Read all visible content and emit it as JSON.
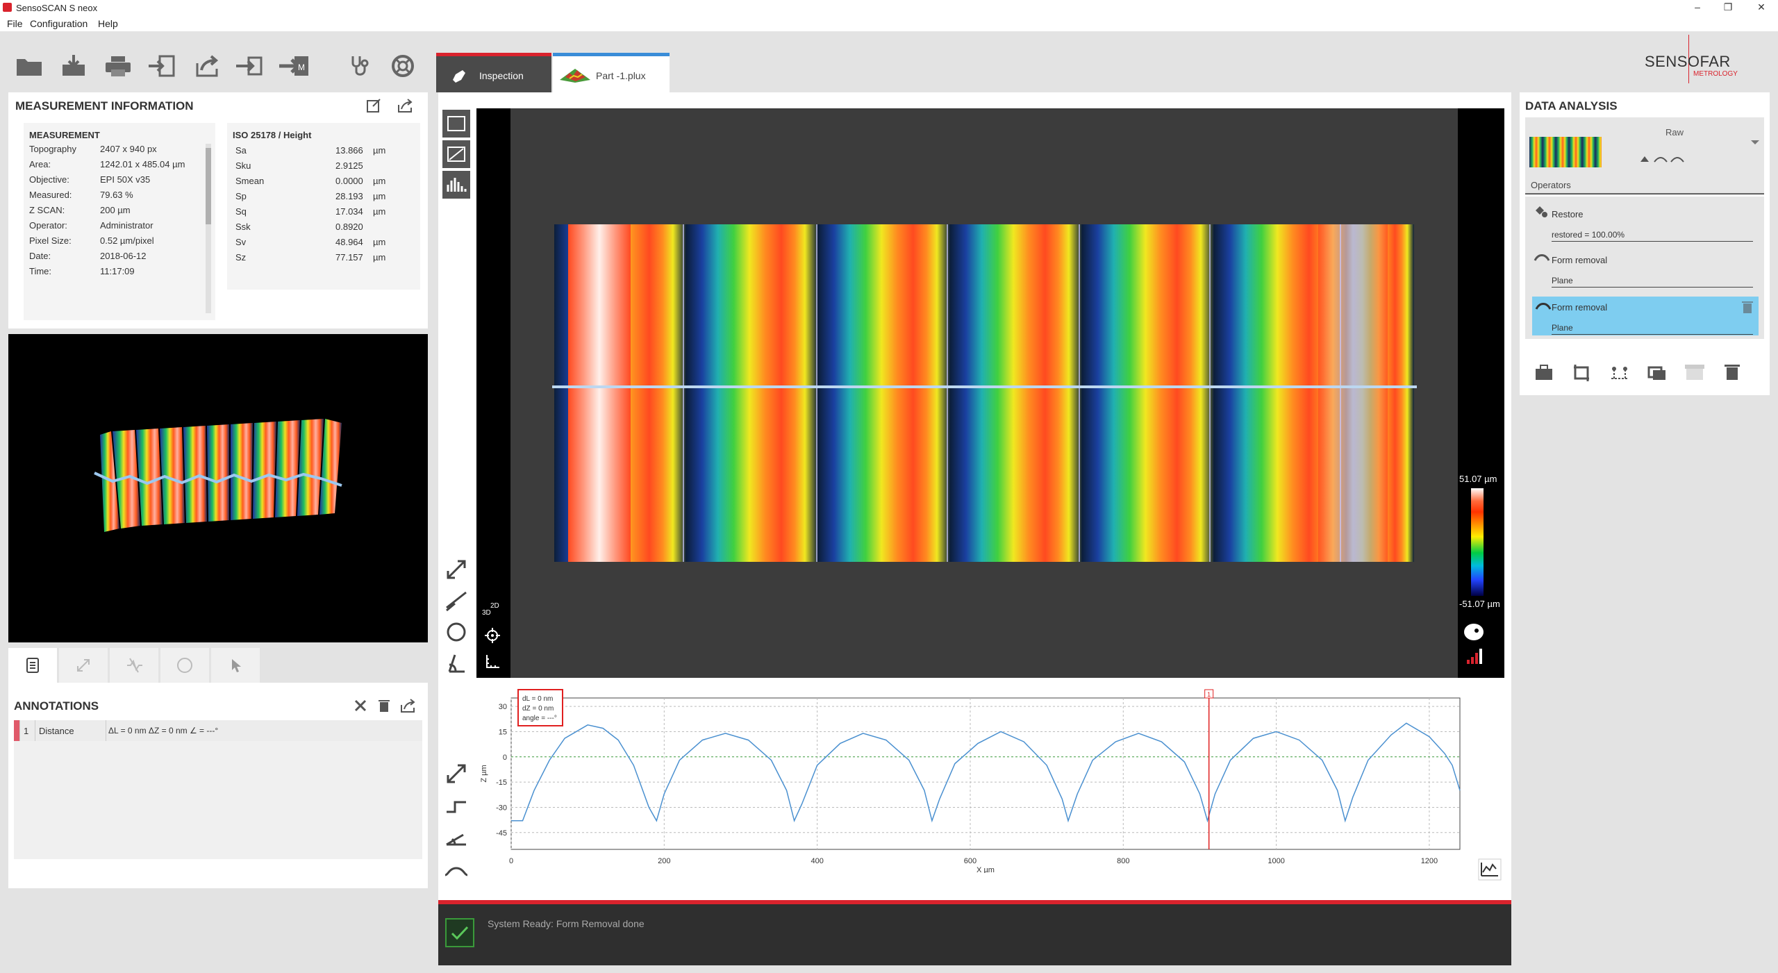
{
  "window": {
    "title": "SensoSCAN S neox"
  },
  "menu": [
    "File",
    "Configuration",
    "Help"
  ],
  "toolbar": {
    "icons": [
      "folder-icon",
      "save-icon",
      "print-icon",
      "report-icon",
      "export-icon",
      "import-icon",
      "import-m-icon",
      "stethoscope-icon",
      "lifebuoy-icon"
    ]
  },
  "tabs": [
    {
      "label": "Inspection",
      "icon": "pen-icon"
    },
    {
      "label": "Part -1.plux",
      "icon": "topography-thumbnail-icon"
    }
  ],
  "logo": {
    "name": "SENSOFAR",
    "sub": "METROLOGY"
  },
  "measurement_info": {
    "title": "MEASUREMENT INFORMATION",
    "measurement": {
      "header": "MEASUREMENT",
      "rows": [
        {
          "k": "Topography",
          "v": "2407 x 940 px"
        },
        {
          "k": "Area:",
          "v": "1242.01 x 485.04 µm"
        },
        {
          "k": "Objective:",
          "v": "EPI 50X v35"
        },
        {
          "k": "Measured:",
          "v": "79.63 %"
        },
        {
          "k": "Z SCAN:",
          "v": "200 µm"
        },
        {
          "k": "Operator:",
          "v": "Administrator"
        },
        {
          "k": "Pixel Size:",
          "v": "0.52 µm/pixel"
        },
        {
          "k": "Date:",
          "v": "2018-06-12"
        },
        {
          "k": "Time:",
          "v": "11:17:09"
        }
      ]
    },
    "iso": {
      "header": "ISO 25178 / Height",
      "rows": [
        {
          "k": "Sa",
          "v": "13.866",
          "u": "µm"
        },
        {
          "k": "Sku",
          "v": "2.9125",
          "u": ""
        },
        {
          "k": "Smean",
          "v": "0.0000",
          "u": "µm"
        },
        {
          "k": "Sp",
          "v": "28.193",
          "u": "µm"
        },
        {
          "k": "Sq",
          "v": "17.034",
          "u": "µm"
        },
        {
          "k": "Ssk",
          "v": "0.8920",
          "u": ""
        },
        {
          "k": "Sv",
          "v": "48.964",
          "u": "µm"
        },
        {
          "k": "Sz",
          "v": "77.157",
          "u": "µm"
        }
      ]
    }
  },
  "annotations": {
    "title": "ANNOTATIONS",
    "rows": [
      {
        "index": "1",
        "type": "Distance",
        "value": "ΔL = 0 nm ΔZ = 0 nm ∠ = ---°"
      }
    ]
  },
  "viewer": {
    "scale_max": "51.07 µm",
    "scale_min": "-51.07 µm",
    "mode_label_2d": "2D",
    "mode_label_3d": "3D"
  },
  "profile": {
    "measure_box": {
      "dl": "dL = 0 nm",
      "dz": "dZ = 0 nm",
      "angle": "angle = ---°"
    },
    "cursor_label": "1",
    "xlabel": "X µm",
    "ylabel": "Z µm",
    "x_ticks": [
      "0",
      "200",
      "400",
      "600",
      "800",
      "1000",
      "1200"
    ],
    "y_ticks": [
      "30",
      "15",
      "0",
      "-15",
      "-30",
      "-45"
    ]
  },
  "chart_data": {
    "type": "line",
    "xlabel": "X µm",
    "ylabel": "Z µm",
    "xlim": [
      0,
      1240
    ],
    "ylim": [
      -55,
      35
    ],
    "x_ticks": [
      0,
      200,
      400,
      600,
      800,
      1000,
      1200
    ],
    "y_ticks": [
      30,
      15,
      0,
      -15,
      -30,
      -45
    ],
    "cursor_x": 912,
    "series": [
      {
        "x": [
          0,
          15,
          30,
          50,
          70,
          100,
          120,
          140,
          160,
          180,
          190,
          200,
          220,
          250,
          280,
          310,
          340,
          360,
          370,
          380,
          400,
          430,
          460,
          490,
          520,
          540,
          550,
          560,
          580,
          610,
          640,
          670,
          700,
          720,
          728,
          740,
          760,
          790,
          820,
          850,
          880,
          900,
          910,
          920,
          940,
          970,
          1000,
          1030,
          1060,
          1080,
          1090,
          1100,
          1120,
          1150,
          1170,
          1200,
          1220,
          1230,
          1240
        ],
        "y": [
          -38,
          -38,
          -20,
          -2,
          11,
          19,
          17,
          10,
          -5,
          -30,
          -38,
          -22,
          -2,
          10,
          14,
          10,
          -2,
          -20,
          -38,
          -28,
          -5,
          8,
          14,
          10,
          -2,
          -20,
          -38,
          -25,
          -4,
          8,
          15,
          9,
          -5,
          -25,
          -38,
          -22,
          -2,
          9,
          14,
          9,
          -3,
          -22,
          -38,
          -22,
          -2,
          11,
          15,
          10,
          -2,
          -20,
          -38,
          -24,
          -2,
          13,
          20,
          12,
          2,
          -5,
          -20
        ]
      }
    ]
  },
  "data_analysis": {
    "title": "DATA ANALYSIS",
    "raw_label": "Raw",
    "operators_label": "Operators",
    "operators": [
      {
        "name": "Restore",
        "sub": "restored = 100.00%",
        "selected": false
      },
      {
        "name": "Form removal",
        "sub": "Plane",
        "selected": false
      },
      {
        "name": "Form removal",
        "sub": "Plane",
        "selected": true
      }
    ]
  },
  "status": {
    "text": "System Ready: Form Removal done"
  },
  "colors": {
    "accent_red": "#d9232d",
    "accent_blue": "#3a8dd8",
    "selected_op": "#7ecdf0"
  }
}
